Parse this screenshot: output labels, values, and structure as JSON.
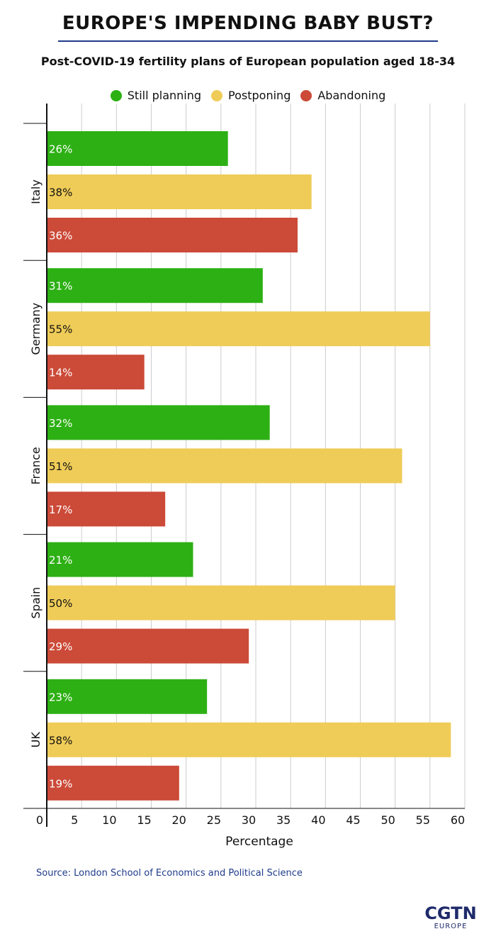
{
  "header": {
    "title": "EUROPE'S IMPENDING BABY BUST?",
    "subtitle": "Post-COVID-19 fertility plans of European population aged 18-34"
  },
  "chart_data": {
    "type": "bar",
    "orientation": "horizontal",
    "categories": [
      "Italy",
      "Germany",
      "France",
      "Spain",
      "UK"
    ],
    "series": [
      {
        "name": "Still planning",
        "color": "#2db014",
        "values": [
          26,
          31,
          32,
          21,
          23
        ]
      },
      {
        "name": "Postponing",
        "color": "#efcc58",
        "values": [
          38,
          55,
          51,
          50,
          58
        ]
      },
      {
        "name": "Abandoning",
        "color": "#cc4a38",
        "values": [
          36,
          14,
          17,
          29,
          19
        ]
      }
    ],
    "bar_value_labels": [
      [
        "26%",
        "38%",
        "36%"
      ],
      [
        "31%",
        "55%",
        "14%"
      ],
      [
        "32%",
        "51%",
        "17%"
      ],
      [
        "21%",
        "50%",
        "29%"
      ],
      [
        "23%",
        "58%",
        "19%"
      ]
    ],
    "xlabel": "Percentage",
    "ylabel": "",
    "xlim": [
      0,
      60
    ],
    "xticks": [
      0,
      5,
      10,
      15,
      20,
      25,
      30,
      35,
      40,
      45,
      50,
      55,
      60
    ],
    "grid": "vertical",
    "legend_position": "top"
  },
  "footer": {
    "source": "Source: London School of Economics and Political Science",
    "logo_main": "CGTN",
    "logo_sub": "EUROPE"
  }
}
